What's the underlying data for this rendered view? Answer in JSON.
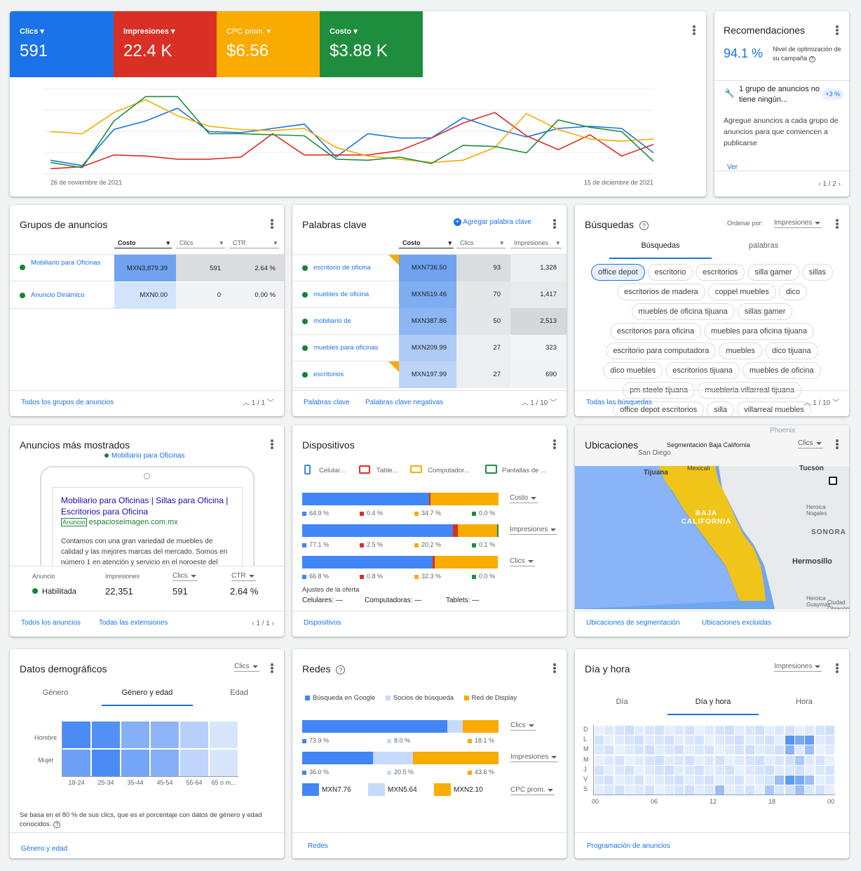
{
  "metrics": [
    {
      "label": "Clics",
      "value": "591",
      "color": "#1a73e8"
    },
    {
      "label": "Impresiones",
      "value": "22.4 K",
      "color": "#d93025"
    },
    {
      "label": "CPC prom.",
      "value": "$6.56",
      "color": "#f9ab00"
    },
    {
      "label": "Costo",
      "value": "$3.88 K",
      "color": "#1e8e3e"
    }
  ],
  "overview": {
    "date_start": "26 de noviembre de 2021",
    "date_end": "15 de diciembre de 2021"
  },
  "chart_data": {
    "type": "line",
    "title": "",
    "x": [
      "26 de noviembre de 2021",
      "",
      "",
      "",
      "",
      "",
      "",
      "",
      "",
      "",
      "",
      "",
      "",
      "",
      "",
      "",
      "",
      "",
      "",
      "15 de diciembre de 2021"
    ],
    "series": [
      {
        "name": "Clics",
        "color": "#1a73e8",
        "values": [
          13,
          8,
          42,
          50,
          62,
          40,
          39,
          43,
          47,
          16,
          38,
          34,
          34,
          53,
          43,
          35,
          43,
          45,
          43,
          20
        ]
      },
      {
        "name": "Impresiones",
        "color": "#d93025",
        "values": [
          5,
          7,
          18,
          17,
          14,
          14,
          16,
          38,
          18,
          18,
          18,
          22,
          34,
          48,
          58,
          36,
          23,
          37,
          17,
          28
        ]
      },
      {
        "name": "CPC prom.",
        "color": "#f9ab00",
        "values": [
          40,
          38,
          58,
          70,
          55,
          45,
          42,
          41,
          43,
          25,
          17,
          14,
          11,
          13,
          25,
          57,
          42,
          33,
          31,
          33
        ]
      },
      {
        "name": "Costo",
        "color": "#1e8e3e",
        "values": [
          11,
          6,
          50,
          73,
          73,
          38,
          38,
          37,
          36,
          14,
          13,
          16,
          10,
          27,
          26,
          20,
          51,
          44,
          40,
          12
        ]
      }
    ]
  },
  "recs": {
    "title": "Recomendaciones",
    "score": "94.1 %",
    "score_label": "Nivel de optimización de su campaña",
    "item_title": "1 grupo de anuncios no tiene ningún...",
    "item_badge": "+3 %",
    "item_text": "Agregue anuncios a cada grupo de anuncios para que comiencen a publicarse",
    "link": "Ver",
    "pager": "1 / 2"
  },
  "adgroups": {
    "title": "Grupos de anuncios",
    "cols": [
      "Costo",
      "Clics",
      "CTR"
    ],
    "rows": [
      {
        "name": "Mobiliario para Oficinas",
        "cost": "MXN3,879.39",
        "clicks": "591",
        "ctr": "2.64 %"
      },
      {
        "name": "Anuncio Dinámico",
        "cost": "MXN0.00",
        "clicks": "0",
        "ctr": "0.00 %"
      }
    ],
    "link": "Todos los grupos de anuncios",
    "pager": "1 / 1"
  },
  "keywords": {
    "title": "Palabras clave",
    "add": "Agregar palabra clave",
    "cols": [
      "Costo",
      "Clics",
      "Impresiones"
    ],
    "rows": [
      {
        "name": "escritorio de oficina",
        "cost": "MXN736.50",
        "clicks": "93",
        "impr": "1,328"
      },
      {
        "name": "muebles de oficina",
        "cost": "MXN519.46",
        "clicks": "70",
        "impr": "1,417"
      },
      {
        "name": "mobiliario de",
        "cost": "MXN387.86",
        "clicks": "50",
        "impr": "2,513"
      },
      {
        "name": "muebles para oficinas",
        "cost": "MXN209.99",
        "clicks": "27",
        "impr": "323"
      },
      {
        "name": "escritorios",
        "cost": "MXN197.99",
        "clicks": "27",
        "impr": "690"
      }
    ],
    "link1": "Palabras clave",
    "link2": "Palabras clave negativas",
    "pager": "1 / 10"
  },
  "searches": {
    "title": "Búsquedas",
    "sort_label": "Ordenar por:",
    "sort": "Impresiones",
    "tab1": "Búsquedas",
    "tab2": "palabras",
    "chips": [
      "office depot",
      "escritorio",
      "escritorios",
      "silla gamer",
      "sillas",
      "escritorios de madera",
      "coppel muebles",
      "dico",
      "muebles de oficina tijuana",
      "sillas gamer",
      "escritorios para oficina",
      "muebles para oficina tijuana",
      "escritorio para computadora",
      "muebles",
      "dico tijuana",
      "dico muebles",
      "escritorios tijuana",
      "muebles de oficina",
      "pm steele tijuana",
      "muebleria villarreal tijuana",
      "office depot escritorios",
      "silla",
      "villarreal muebles"
    ],
    "link": "Todas las búsquedas",
    "pager": "1 / 10"
  },
  "topads": {
    "title": "Anuncios más mostrados",
    "group": "Mobiliario para Oficinas",
    "headline": "Mobiliario para Oficinas | Sillas para Oficina | Escritorios para Oficina",
    "badge": "Anuncio",
    "url": "espacioseimagen.com.mx",
    "desc": "Contamos con una gran variedad de muebles de calidad y las mejores marcas del mercado. Somos en número 1 en atención y servicio en el noroeste del",
    "stats": [
      {
        "label": "Anuncio",
        "value": "Habilitada"
      },
      {
        "label": "Impresiones",
        "value": "22,351"
      },
      {
        "label": "Clics",
        "value": "591"
      },
      {
        "label": "CTR",
        "value": "2.64 %"
      }
    ],
    "link1": "Todos los anuncios",
    "link2": "Todas las extensiones",
    "pager": "1 / 1"
  },
  "devices": {
    "title": "Dispositivos",
    "legend": [
      "Celular...",
      "Table...",
      "Computador...",
      "Pantallas de ..."
    ],
    "rows": [
      {
        "metric": "Costo",
        "values": [
          64.9,
          0.4,
          34.7,
          0.0
        ],
        "labels": [
          "64.9 %",
          "0.4 %",
          "34.7 %",
          "0.0 %"
        ]
      },
      {
        "metric": "Impresiones",
        "values": [
          77.1,
          2.5,
          20.2,
          0.1
        ],
        "labels": [
          "77.1 %",
          "2.5 %",
          "20.2 %",
          "0.1 %"
        ]
      },
      {
        "metric": "Clics",
        "values": [
          66.8,
          0.8,
          32.3,
          0.0
        ],
        "labels": [
          "66.8 %",
          "0.8 %",
          "32.3 %",
          "0.0 %"
        ]
      }
    ],
    "bid_title": "Ajustes de la oferta",
    "bid_items": [
      "Celulares: —",
      "Computadoras: —",
      "Tablets: —"
    ],
    "link": "Dispositivos"
  },
  "locations": {
    "title": "Ubicaciones",
    "seg": "Segmentación Baja California",
    "metric": "Clics",
    "map_labels": [
      "Tijuana",
      "San Diego",
      "Mexicali",
      "BAJA CALIFORNIA",
      "Tucson",
      "Phoenix",
      "Heroica Nogales",
      "SONORA",
      "Hermosillo",
      "Heroica Guaymas",
      "Ciudad Obregón"
    ],
    "link1": "Ubicaciones de segmentación",
    "link2": "Ubicaciones excluidas"
  },
  "demo": {
    "title": "Datos demográficos",
    "metric": "Clics",
    "tabs": [
      "Género",
      "Género y edad",
      "Edad"
    ],
    "rows": [
      "Hombre",
      "Mujer"
    ],
    "cols": [
      "18-24",
      "25-34",
      "35-44",
      "45-54",
      "55-64",
      "65 o m..."
    ],
    "note": "Se basa en el 80 % de sus clics, que es el porcentaje con datos de género y edad conocidos.",
    "link": "Género y edad",
    "heat": [
      [
        0.95,
        0.9,
        0.6,
        0.55,
        0.3,
        0.1
      ],
      [
        0.75,
        0.95,
        0.7,
        0.6,
        0.25,
        0.1
      ]
    ]
  },
  "networks": {
    "title": "Redes",
    "legend": [
      "Búsqueda en Google",
      "Socios de búsqueda",
      "Red de Display"
    ],
    "rows": [
      {
        "metric": "Clics",
        "values": [
          73.9,
          8.0,
          18.1
        ],
        "labels": [
          "73.9 %",
          "8.0 %",
          "18.1 %"
        ]
      },
      {
        "metric": "Impresiones",
        "values": [
          36.0,
          20.5,
          43.6
        ],
        "labels": [
          "36.0 %",
          "20.5 %",
          "43.6 %"
        ]
      }
    ],
    "cpc_metric": "CPC prom.",
    "cpc": [
      "MXN7.76",
      "MXN5.64",
      "MXN2.10"
    ],
    "link": "Redes"
  },
  "dayhour": {
    "title": "Día y hora",
    "metric": "Impresiones",
    "tabs": [
      "Día",
      "Día y hora",
      "Hora"
    ],
    "days": [
      "D",
      "L",
      "M",
      "M",
      "J",
      "V",
      "S"
    ],
    "hours": [
      "00",
      "06",
      "12",
      "18",
      "00"
    ],
    "link": "Programación de anuncios"
  }
}
